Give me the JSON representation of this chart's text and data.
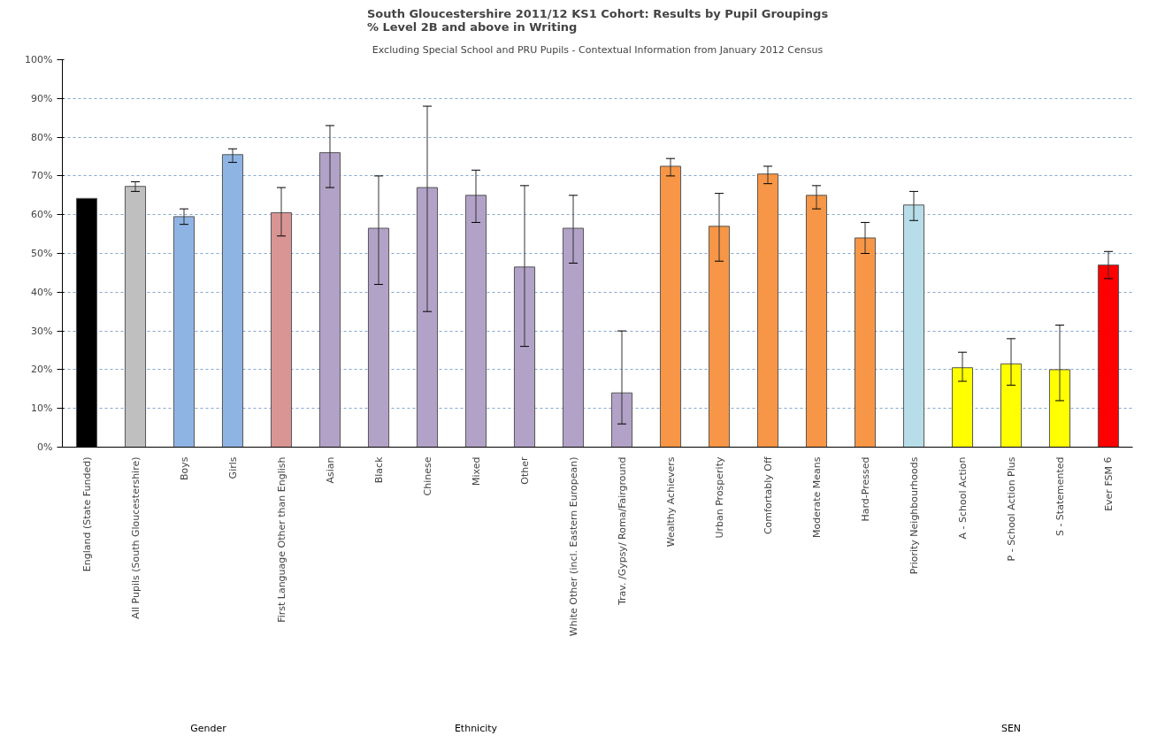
{
  "chart_data": {
    "type": "bar",
    "title": "South Gloucestershire 2011/12 KS1 Cohort: Results by Pupil Groupings\n% Level 2B and above in Writing",
    "subtitle": "Excluding Special School and PRU Pupils - Contextual Information from January 2012 Census",
    "categories": [
      "England (State Funded)",
      "All Pupils (South Gloucestershire)",
      "Boys",
      "Girls",
      "First Language Other than English",
      "Asian",
      "Black",
      "Chinese",
      "Mixed",
      "Other",
      "White Other (incl. Eastern European)",
      "Trav. /Gypsy/ Roma/Fairground",
      "Wealthy Achievers",
      "Urban Prosperity",
      "Comfortably Off",
      "Moderate Means",
      "Hard-Pressed",
      "Priority Neighbourhoods",
      "A - School Action",
      "P - School Action Plus",
      "S - Statemented",
      "Ever FSM 6"
    ],
    "values": [
      64.2,
      67.3,
      59.5,
      75.5,
      60.5,
      76,
      56.5,
      67,
      65,
      46.5,
      56.5,
      14,
      72.5,
      57,
      70.5,
      65,
      54,
      62.5,
      20.5,
      21.5,
      20,
      47
    ],
    "errors": [
      null,
      [
        66,
        68.5
      ],
      [
        57.5,
        61.5
      ],
      [
        73.5,
        77
      ],
      [
        54.5,
        67
      ],
      [
        67,
        83
      ],
      [
        42,
        70
      ],
      [
        35,
        88
      ],
      [
        58,
        71.5
      ],
      [
        26,
        67.5
      ],
      [
        47.5,
        65
      ],
      [
        6,
        30
      ],
      [
        70,
        74.5
      ],
      [
        48,
        65.5
      ],
      [
        68,
        72.5
      ],
      [
        61.5,
        67.5
      ],
      [
        50,
        58
      ],
      [
        58.5,
        66
      ],
      [
        17,
        24.5
      ],
      [
        16,
        28
      ],
      [
        12,
        31.5
      ],
      [
        43.5,
        50.5
      ]
    ],
    "colors": [
      "#000000",
      "#bfbfbf",
      "#8eb4e3",
      "#8eb4e3",
      "#d99594",
      "#b2a2c7",
      "#b2a2c7",
      "#b2a2c7",
      "#b2a2c7",
      "#b2a2c7",
      "#b2a2c7",
      "#b2a2c7",
      "#f79646",
      "#f79646",
      "#f79646",
      "#f79646",
      "#f79646",
      "#b7dde8",
      "#ffff00",
      "#ffff00",
      "#ffff00",
      "#ff0000"
    ],
    "ylim": [
      0,
      100
    ],
    "yticks": [
      {
        "value": 0,
        "label": "0%"
      },
      {
        "value": 10,
        "label": "10%"
      },
      {
        "value": 20,
        "label": "20%"
      },
      {
        "value": 30,
        "label": "30%"
      },
      {
        "value": 40,
        "label": "40%"
      },
      {
        "value": 50,
        "label": "50%"
      },
      {
        "value": 60,
        "label": "60%"
      },
      {
        "value": 70,
        "label": "70%"
      },
      {
        "value": 80,
        "label": "80%"
      },
      {
        "value": 90,
        "label": "90%"
      },
      {
        "value": 100,
        "label": "100%"
      }
    ],
    "grid": "y",
    "annotations": [
      "Gender",
      "Ethnicity",
      "SEN"
    ]
  }
}
